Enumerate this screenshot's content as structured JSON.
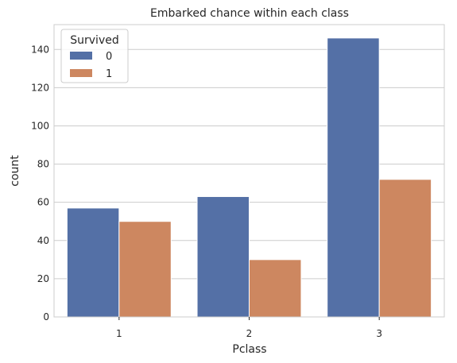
{
  "chart_data": {
    "type": "bar",
    "title": "Embarked chance within each class",
    "xlabel": "Pclass",
    "ylabel": "count",
    "categories": [
      "1",
      "2",
      "3"
    ],
    "series": [
      {
        "name": "0",
        "values": [
          57,
          63,
          146
        ],
        "color": "#5470a6"
      },
      {
        "name": "1",
        "values": [
          50,
          30,
          72
        ],
        "color": "#cd8760"
      }
    ],
    "ylim": [
      0,
      153
    ],
    "yticks": [
      "0",
      "20",
      "40",
      "60",
      "80",
      "100",
      "120",
      "140"
    ],
    "grid": true,
    "legend": {
      "title": "Survived",
      "placement": "top-left"
    }
  }
}
